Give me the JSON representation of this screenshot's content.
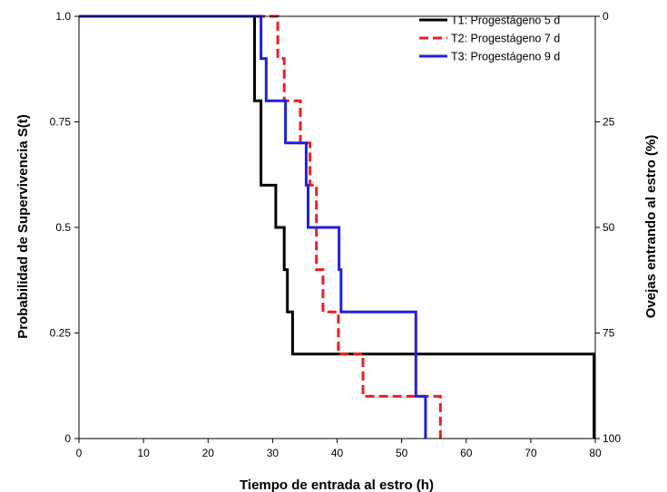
{
  "chart_data": {
    "type": "line",
    "step": true,
    "xlabel": "Tiempo de entrada al estro (h)",
    "ylabel": "Probabilidad de Supervivencia S(t)",
    "y2label": "Ovejas entrando al estro (%)",
    "xlim": [
      0,
      80
    ],
    "ylim": [
      0,
      1
    ],
    "x_ticks": [
      0,
      10,
      20,
      30,
      40,
      50,
      60,
      70,
      80
    ],
    "x_tick_labels": [
      "0",
      "10",
      "20",
      "30",
      "40",
      "50",
      "60",
      "70",
      "80"
    ],
    "y_ticks": [
      0,
      0.25,
      0.5,
      0.75,
      1.0
    ],
    "y_tick_labels": [
      "0",
      "0.25",
      "0.5",
      "0.75",
      "1.0"
    ],
    "y2_ticks": [
      1.0,
      0.75,
      0.5,
      0.25,
      0
    ],
    "y2_tick_labels": [
      "0",
      "25",
      "50",
      "75",
      "100"
    ],
    "legend_position": "top-right",
    "series": [
      {
        "name": "T1: Progestágeno 5 d",
        "color": "#000000",
        "dash": "solid",
        "points": [
          [
            0,
            1.0
          ],
          [
            27.2,
            1.0
          ],
          [
            27.2,
            0.8
          ],
          [
            28.2,
            0.8
          ],
          [
            28.2,
            0.6
          ],
          [
            30.5,
            0.6
          ],
          [
            30.5,
            0.5
          ],
          [
            31.8,
            0.5
          ],
          [
            31.8,
            0.4
          ],
          [
            32.3,
            0.4
          ],
          [
            32.3,
            0.3
          ],
          [
            33.1,
            0.3
          ],
          [
            33.1,
            0.2
          ],
          [
            79.8,
            0.2
          ],
          [
            79.8,
            0.0
          ]
        ]
      },
      {
        "name": "T2: Progestágeno 7 d",
        "color": "#e8201f",
        "dash": "dashed",
        "points": [
          [
            0,
            1.0
          ],
          [
            30.8,
            1.0
          ],
          [
            30.8,
            0.9
          ],
          [
            31.8,
            0.9
          ],
          [
            31.8,
            0.8
          ],
          [
            34.3,
            0.8
          ],
          [
            34.3,
            0.7
          ],
          [
            35.8,
            0.7
          ],
          [
            35.8,
            0.6
          ],
          [
            36.8,
            0.6
          ],
          [
            36.8,
            0.4
          ],
          [
            37.8,
            0.4
          ],
          [
            37.8,
            0.3
          ],
          [
            40.2,
            0.3
          ],
          [
            40.2,
            0.2
          ],
          [
            44.0,
            0.2
          ],
          [
            44.0,
            0.1
          ],
          [
            56.0,
            0.1
          ],
          [
            56.0,
            0.0
          ]
        ]
      },
      {
        "name": "T3: Progestágeno 9 d",
        "color": "#1f20e0",
        "dash": "solid",
        "points": [
          [
            0,
            1.0
          ],
          [
            28.2,
            1.0
          ],
          [
            28.2,
            0.9
          ],
          [
            29.0,
            0.9
          ],
          [
            29.0,
            0.8
          ],
          [
            32.0,
            0.8
          ],
          [
            32.0,
            0.7
          ],
          [
            35.2,
            0.7
          ],
          [
            35.2,
            0.6
          ],
          [
            35.5,
            0.6
          ],
          [
            35.5,
            0.5
          ],
          [
            40.3,
            0.5
          ],
          [
            40.3,
            0.4
          ],
          [
            40.6,
            0.4
          ],
          [
            40.6,
            0.3
          ],
          [
            52.2,
            0.3
          ],
          [
            52.2,
            0.1
          ],
          [
            53.7,
            0.1
          ],
          [
            53.7,
            0.0
          ]
        ]
      }
    ]
  }
}
